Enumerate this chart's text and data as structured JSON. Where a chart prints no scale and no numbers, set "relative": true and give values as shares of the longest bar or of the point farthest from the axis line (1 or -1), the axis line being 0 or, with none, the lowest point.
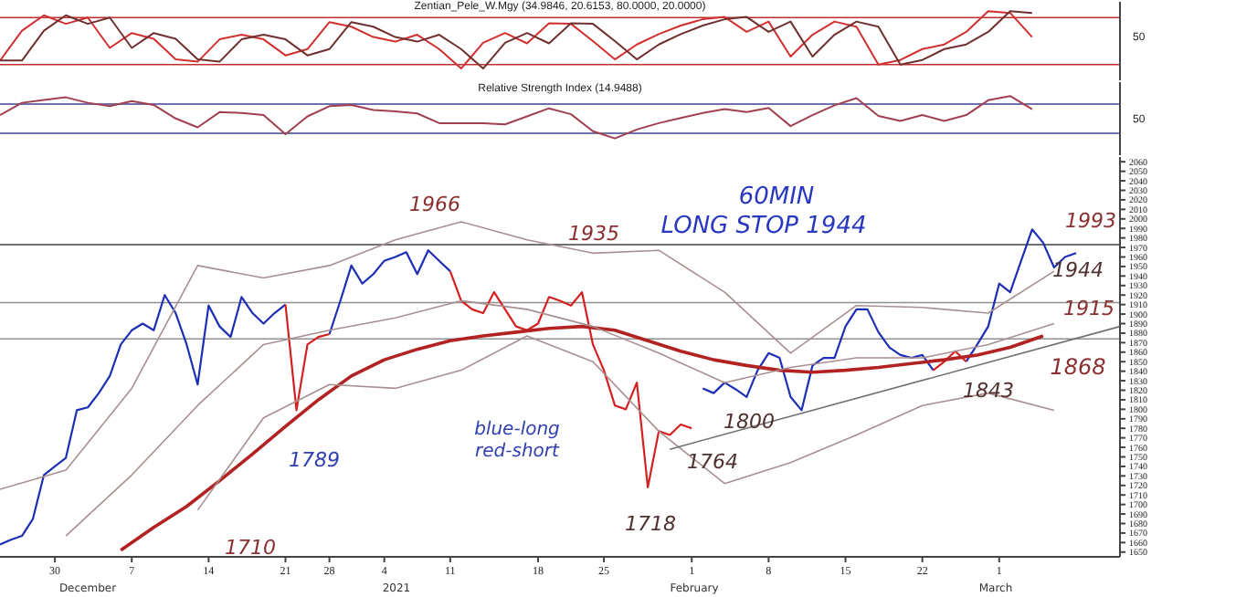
{
  "chart_data": [
    {
      "type": "line",
      "title": "Zentian_Pele_W.Mgy (34.9846, 20.6153, 80.0000, 20.0000)",
      "marker": "none",
      "relative": true,
      "annotations": [
        "50"
      ],
      "categories": [
        null,
        null,
        null,
        null,
        null,
        null,
        null,
        null,
        null,
        null,
        null,
        null,
        null,
        null,
        null,
        null,
        null,
        null,
        null,
        null,
        null,
        null,
        null,
        null,
        null,
        null,
        null,
        null,
        null,
        null,
        null,
        null,
        null,
        null,
        null,
        null,
        null,
        null,
        null,
        null,
        null,
        null,
        null,
        null,
        null,
        null,
        null,
        null,
        null,
        null,
        null,
        null
      ],
      "ref_lines": [
        {
          "axis": "y",
          "value": 0.89,
          "color": "#c03030"
        },
        {
          "axis": "y",
          "value": 0.07,
          "color": "#c03030"
        }
      ],
      "series": [
        {
          "color": "#d03030",
          "values": [
            0.14,
            0.66,
            0.93,
            0.78,
            0.89,
            0.36,
            0.62,
            0.52,
            0.16,
            0.12,
            0.51,
            0.59,
            0.51,
            0.23,
            0.34,
            0.81,
            0.73,
            0.55,
            0.47,
            0.59,
            0.34,
            0,
            0.45,
            0.62,
            0.44,
            0.79,
            0.78,
            0.48,
            0.16,
            0.42,
            0.6,
            0.75,
            0.86,
            0.9,
            0.64,
            0.82,
            0.21,
            0.59,
            0.82,
            0.73,
            0.07,
            0.15,
            0.34,
            0.42,
            0.64,
            1,
            0.97,
            0.55,
            null,
            null,
            null,
            null
          ]
        },
        {
          "color": "#703030",
          "values": [
            0.14,
            0.14,
            0.66,
            0.93,
            0.78,
            0.89,
            0.36,
            0.62,
            0.52,
            0.16,
            0.12,
            0.51,
            0.59,
            0.51,
            0.23,
            0.34,
            0.81,
            0.73,
            0.55,
            0.47,
            0.59,
            0.34,
            0,
            0.45,
            0.62,
            0.44,
            0.79,
            0.78,
            0.48,
            0.16,
            0.42,
            0.6,
            0.75,
            0.86,
            0.9,
            0.64,
            0.82,
            0.21,
            0.59,
            0.82,
            0.73,
            0.07,
            0.15,
            0.34,
            0.42,
            0.64,
            1,
            0.97,
            null,
            null,
            null,
            null
          ]
        }
      ]
    },
    {
      "type": "line",
      "title": "Relative Strength Index (14.9488)",
      "marker": "none",
      "relative": true,
      "annotations": [
        "50"
      ],
      "categories": [
        null,
        null,
        null,
        null,
        null,
        null,
        null,
        null,
        null,
        null,
        null,
        null,
        null,
        null,
        null,
        null,
        null,
        null,
        null,
        null,
        null,
        null,
        null,
        null,
        null,
        null,
        null,
        null,
        null,
        null,
        null,
        null,
        null,
        null,
        null,
        null,
        null,
        null,
        null,
        null,
        null,
        null,
        null,
        null,
        null,
        null,
        null,
        null,
        null,
        null,
        null,
        null
      ],
      "ref_lines": [
        {
          "axis": "y",
          "value": 0.81,
          "color": "#404090"
        },
        {
          "axis": "y",
          "value": 0.12,
          "color": "#404090"
        }
      ],
      "series": [
        {
          "color": "#a04050",
          "values": [
            0.55,
            0.84,
            0.91,
            0.97,
            0.84,
            0.76,
            0.88,
            0.79,
            0.47,
            0.26,
            0.62,
            0.6,
            0.55,
            0.1,
            0.52,
            0.76,
            0.79,
            0.67,
            0.64,
            0.59,
            0.36,
            0.36,
            0.36,
            0.33,
            0.52,
            0.71,
            0.57,
            0.17,
            0,
            0.21,
            0.36,
            0.48,
            0.6,
            0.69,
            0.62,
            0.72,
            0.29,
            0.55,
            0.78,
            0.95,
            0.53,
            0.41,
            0.55,
            0.41,
            0.55,
            0.9,
            1,
            0.69,
            null,
            null,
            null,
            null
          ]
        }
      ]
    },
    {
      "type": "line",
      "title": "60MIN",
      "subtitle": "LONG STOP 1944",
      "marker": "none",
      "ylim": [
        1645,
        2065
      ],
      "yticks": [
        1650,
        1660,
        1670,
        1680,
        1690,
        1700,
        1710,
        1720,
        1730,
        1740,
        1750,
        1760,
        1770,
        1780,
        1790,
        1800,
        1810,
        1820,
        1830,
        1840,
        1850,
        1860,
        1870,
        1880,
        1890,
        1900,
        1910,
        1920,
        1930,
        1940,
        1950,
        1960,
        1970,
        1980,
        1990,
        2000,
        2010,
        2020,
        2030,
        2040,
        2050,
        2060
      ],
      "annotations": [
        "1966",
        "1935",
        "1789",
        "1710",
        "blue-long",
        "red-short",
        "1718",
        "1764",
        "1800",
        "1843",
        "1993",
        "1944",
        "1915",
        "1868",
        "December",
        "2021",
        "February",
        "March"
      ],
      "categories": [
        null,
        null,
        null,
        null,
        null,
        "30",
        null,
        null,
        null,
        null,
        null,
        null,
        "7",
        null,
        null,
        null,
        null,
        null,
        null,
        "14",
        null,
        null,
        null,
        null,
        null,
        null,
        "21",
        null,
        null,
        null,
        "28",
        null,
        null,
        null,
        null,
        "4",
        null,
        null,
        null,
        null,
        null,
        "11",
        null,
        null,
        null,
        null,
        null,
        null,
        null,
        "18",
        null,
        null,
        null,
        null,
        null,
        "25",
        null,
        null,
        null,
        null,
        null,
        null,
        null,
        "1",
        null,
        null,
        null,
        null,
        null,
        null,
        "8",
        null,
        null,
        null,
        null,
        null,
        null,
        "15",
        null,
        null,
        null,
        null,
        null,
        null,
        "22",
        null,
        null,
        null,
        null,
        null,
        null,
        "1",
        null,
        null,
        null,
        null,
        null,
        null,
        null,
        null,
        null,
        null,
        null
      ],
      "ref_lines": [
        {
          "axis": "y",
          "value": 1973,
          "color": "#404040"
        },
        {
          "axis": "y",
          "value": 1912,
          "color": "#909090"
        },
        {
          "axis": "y",
          "value": 1874,
          "color": "#909090"
        }
      ],
      "series": [
        {
          "color": "#1c2fb5",
          "values": [
            1658,
            1663,
            1667,
            1685,
            1731,
            1740,
            1749,
            1799,
            1802,
            1817,
            1835,
            1868,
            1883,
            1890,
            1883,
            1920,
            1901,
            1868,
            1826,
            1909,
            1887,
            1876,
            1918,
            1901,
            1890,
            1901,
            1910,
            null,
            null,
            null,
            1879,
            1914,
            1951,
            1932,
            1942,
            1956,
            1960,
            1965,
            1942,
            1967,
            1956,
            1945,
            null,
            null,
            null,
            null,
            null,
            null,
            null,
            null,
            null,
            null,
            null,
            null,
            null,
            null,
            null,
            null,
            null,
            null,
            null,
            null,
            null,
            null,
            1822,
            1817,
            1828,
            1821,
            1813,
            1841,
            1859,
            1854,
            1813,
            1799,
            1846,
            1854,
            1854,
            1887,
            1905,
            1905,
            1881,
            1865,
            1857,
            1854,
            1857,
            1841,
            null,
            null,
            1850,
            1868,
            1887,
            1932,
            1923,
            1956,
            1989,
            1975,
            1949,
            1960,
            1964,
            null,
            null,
            null,
            null
          ]
        },
        {
          "color": "#d42020",
          "values": [
            null,
            null,
            null,
            null,
            null,
            null,
            null,
            null,
            null,
            null,
            null,
            null,
            null,
            null,
            null,
            null,
            null,
            null,
            null,
            null,
            null,
            null,
            null,
            null,
            null,
            null,
            1910,
            1799,
            1868,
            1876,
            1879,
            null,
            null,
            null,
            null,
            null,
            null,
            null,
            null,
            null,
            null,
            1945,
            1914,
            1905,
            1901,
            1923,
            1905,
            1887,
            1883,
            1890,
            1918,
            1914,
            1909,
            1923,
            1868,
            1841,
            1804,
            1800,
            1828,
            1718,
            1777,
            1773,
            1784,
            1780,
            null,
            null,
            null,
            null,
            null,
            null,
            null,
            null,
            null,
            null,
            null,
            null,
            null,
            null,
            null,
            null,
            null,
            null,
            null,
            null,
            null,
            1841,
            1850,
            1861,
            1850,
            null,
            null,
            null,
            null,
            null,
            null,
            null,
            null,
            null,
            null,
            null,
            null,
            null,
            null
          ]
        },
        {
          "color": "#b22222",
          "values": [
            null,
            null,
            null,
            null,
            null,
            null,
            null,
            null,
            null,
            null,
            null,
            1652,
            null,
            null,
            1676,
            null,
            null,
            1698,
            null,
            null,
            1725,
            null,
            null,
            1753,
            null,
            null,
            1782,
            null,
            null,
            1810,
            null,
            null,
            1835,
            null,
            null,
            1852,
            null,
            null,
            1863,
            null,
            null,
            1872,
            null,
            null,
            1877,
            null,
            null,
            1881,
            null,
            null,
            1885,
            null,
            null,
            1887,
            null,
            null,
            1883,
            null,
            null,
            1872,
            null,
            null,
            1861,
            null,
            null,
            1852,
            null,
            null,
            1846,
            null,
            null,
            1841,
            null,
            null,
            1839,
            null,
            null,
            1841,
            null,
            null,
            1844,
            null,
            null,
            1848,
            null,
            null,
            1852,
            null,
            null,
            1857,
            null,
            null,
            1865,
            null,
            null,
            1877,
            null,
            null,
            null,
            null,
            null,
            null,
            null
          ]
        },
        {
          "color": "#a89090",
          "values": [
            1716,
            null,
            null,
            null,
            null,
            null,
            1736,
            null,
            null,
            null,
            null,
            null,
            1822,
            null,
            null,
            null,
            null,
            null,
            1951,
            null,
            null,
            null,
            null,
            null,
            1938,
            null,
            null,
            null,
            null,
            null,
            1951,
            null,
            null,
            null,
            null,
            null,
            1978,
            null,
            null,
            null,
            null,
            null,
            1997,
            null,
            null,
            null,
            null,
            null,
            1978,
            null,
            null,
            null,
            null,
            null,
            1964,
            null,
            null,
            null,
            null,
            null,
            1967,
            null,
            null,
            null,
            null,
            null,
            1923,
            null,
            null,
            null,
            null,
            null,
            1859,
            null,
            null,
            null,
            null,
            null,
            1909,
            null,
            null,
            null,
            null,
            null,
            1907,
            null,
            null,
            null,
            null,
            null,
            1901,
            null,
            null,
            null,
            null,
            null,
            1945,
            null,
            null,
            null,
            null,
            null,
            null
          ]
        },
        {
          "color": "#a89090",
          "values": [
            null,
            null,
            null,
            null,
            null,
            null,
            1667,
            null,
            null,
            null,
            null,
            null,
            1731,
            null,
            null,
            null,
            null,
            null,
            1804,
            null,
            null,
            null,
            null,
            null,
            1868,
            null,
            null,
            null,
            null,
            null,
            1883,
            null,
            null,
            null,
            null,
            null,
            1896,
            null,
            null,
            null,
            null,
            null,
            1914,
            null,
            null,
            null,
            null,
            null,
            1905,
            null,
            null,
            null,
            null,
            null,
            1887,
            null,
            null,
            null,
            null,
            null,
            1859,
            null,
            null,
            null,
            null,
            null,
            1828,
            null,
            null,
            null,
            null,
            null,
            1844,
            null,
            null,
            null,
            null,
            null,
            1854,
            null,
            null,
            null,
            null,
            null,
            1854,
            null,
            null,
            null,
            null,
            null,
            1868,
            null,
            null,
            null,
            null,
            null,
            1890,
            null,
            null,
            null,
            null,
            null,
            null
          ]
        },
        {
          "color": "#a89090",
          "values": [
            null,
            null,
            null,
            null,
            null,
            null,
            null,
            null,
            null,
            null,
            null,
            null,
            null,
            null,
            null,
            null,
            null,
            null,
            1694,
            null,
            null,
            null,
            null,
            null,
            1791,
            null,
            null,
            null,
            null,
            null,
            1826,
            null,
            null,
            null,
            null,
            null,
            1822,
            null,
            null,
            null,
            null,
            null,
            1841,
            null,
            null,
            null,
            null,
            null,
            1877,
            null,
            null,
            null,
            null,
            null,
            1850,
            null,
            null,
            null,
            null,
            null,
            1777,
            null,
            null,
            null,
            null,
            null,
            1722,
            null,
            null,
            null,
            null,
            null,
            1744,
            null,
            null,
            null,
            null,
            null,
            1773,
            null,
            null,
            null,
            null,
            null,
            1804,
            null,
            null,
            null,
            null,
            null,
            1817,
            null,
            null,
            null,
            null,
            null,
            1799,
            null,
            null,
            null,
            null,
            null,
            null
          ]
        },
        {
          "color": "#707070",
          "values": [
            null,
            null,
            null,
            null,
            null,
            null,
            null,
            null,
            null,
            null,
            null,
            null,
            null,
            null,
            null,
            null,
            null,
            null,
            null,
            null,
            null,
            null,
            null,
            null,
            null,
            null,
            null,
            null,
            null,
            null,
            null,
            null,
            null,
            null,
            null,
            null,
            null,
            null,
            null,
            null,
            null,
            null,
            null,
            null,
            null,
            null,
            null,
            null,
            null,
            null,
            null,
            null,
            null,
            null,
            null,
            null,
            null,
            null,
            null,
            null,
            null,
            1758,
            null,
            null,
            null,
            null,
            null,
            null,
            null,
            null,
            null,
            null,
            null,
            null,
            null,
            null,
            null,
            null,
            null,
            null,
            null,
            null,
            null,
            null,
            null,
            null,
            null,
            null,
            null,
            null,
            null,
            null,
            null,
            null,
            null,
            null,
            null,
            null,
            null,
            null,
            null,
            null,
            1887
          ]
        }
      ]
    }
  ]
}
